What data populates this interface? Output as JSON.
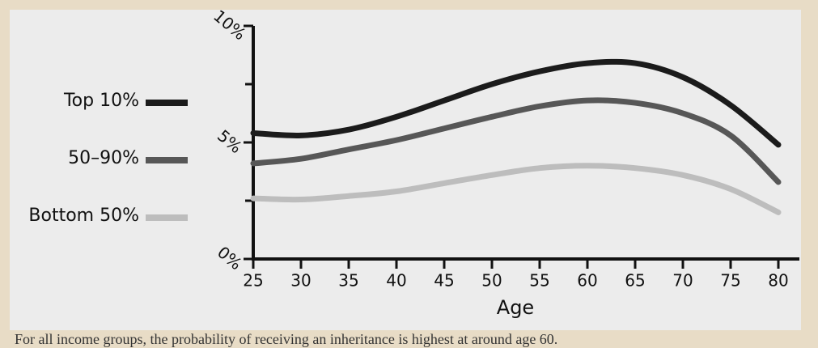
{
  "chart_data": {
    "type": "line",
    "x_label": "Age",
    "x": [
      25,
      30,
      35,
      40,
      45,
      50,
      55,
      60,
      65,
      70,
      75,
      80
    ],
    "xlim": [
      25,
      80
    ],
    "xticks": [
      25,
      30,
      35,
      40,
      45,
      50,
      55,
      60,
      65,
      70,
      75,
      80
    ],
    "ylim": [
      0,
      10
    ],
    "yticks": [
      {
        "value": 0,
        "label": "0%"
      },
      {
        "value": 5,
        "label": "5%"
      },
      {
        "value": 10,
        "label": "10%"
      }
    ],
    "minor_yticks": [
      2.5,
      7.5
    ],
    "series": [
      {
        "name": "Top 10%",
        "color": "#1b1b1b",
        "values": [
          5.4,
          5.3,
          5.55,
          6.1,
          6.8,
          7.5,
          8.05,
          8.4,
          8.4,
          7.8,
          6.6,
          4.9
        ]
      },
      {
        "name": "50–90%",
        "color": "#575757",
        "values": [
          4.1,
          4.3,
          4.7,
          5.1,
          5.6,
          6.1,
          6.55,
          6.8,
          6.7,
          6.25,
          5.3,
          3.3
        ]
      },
      {
        "name": "Bottom 50%",
        "color": "#bdbdbd",
        "values": [
          2.6,
          2.55,
          2.7,
          2.9,
          3.25,
          3.6,
          3.9,
          4.0,
          3.9,
          3.6,
          3.0,
          2.0
        ]
      }
    ]
  },
  "caption": "For all income groups, the probability of receiving an inheritance is highest at around age 60."
}
